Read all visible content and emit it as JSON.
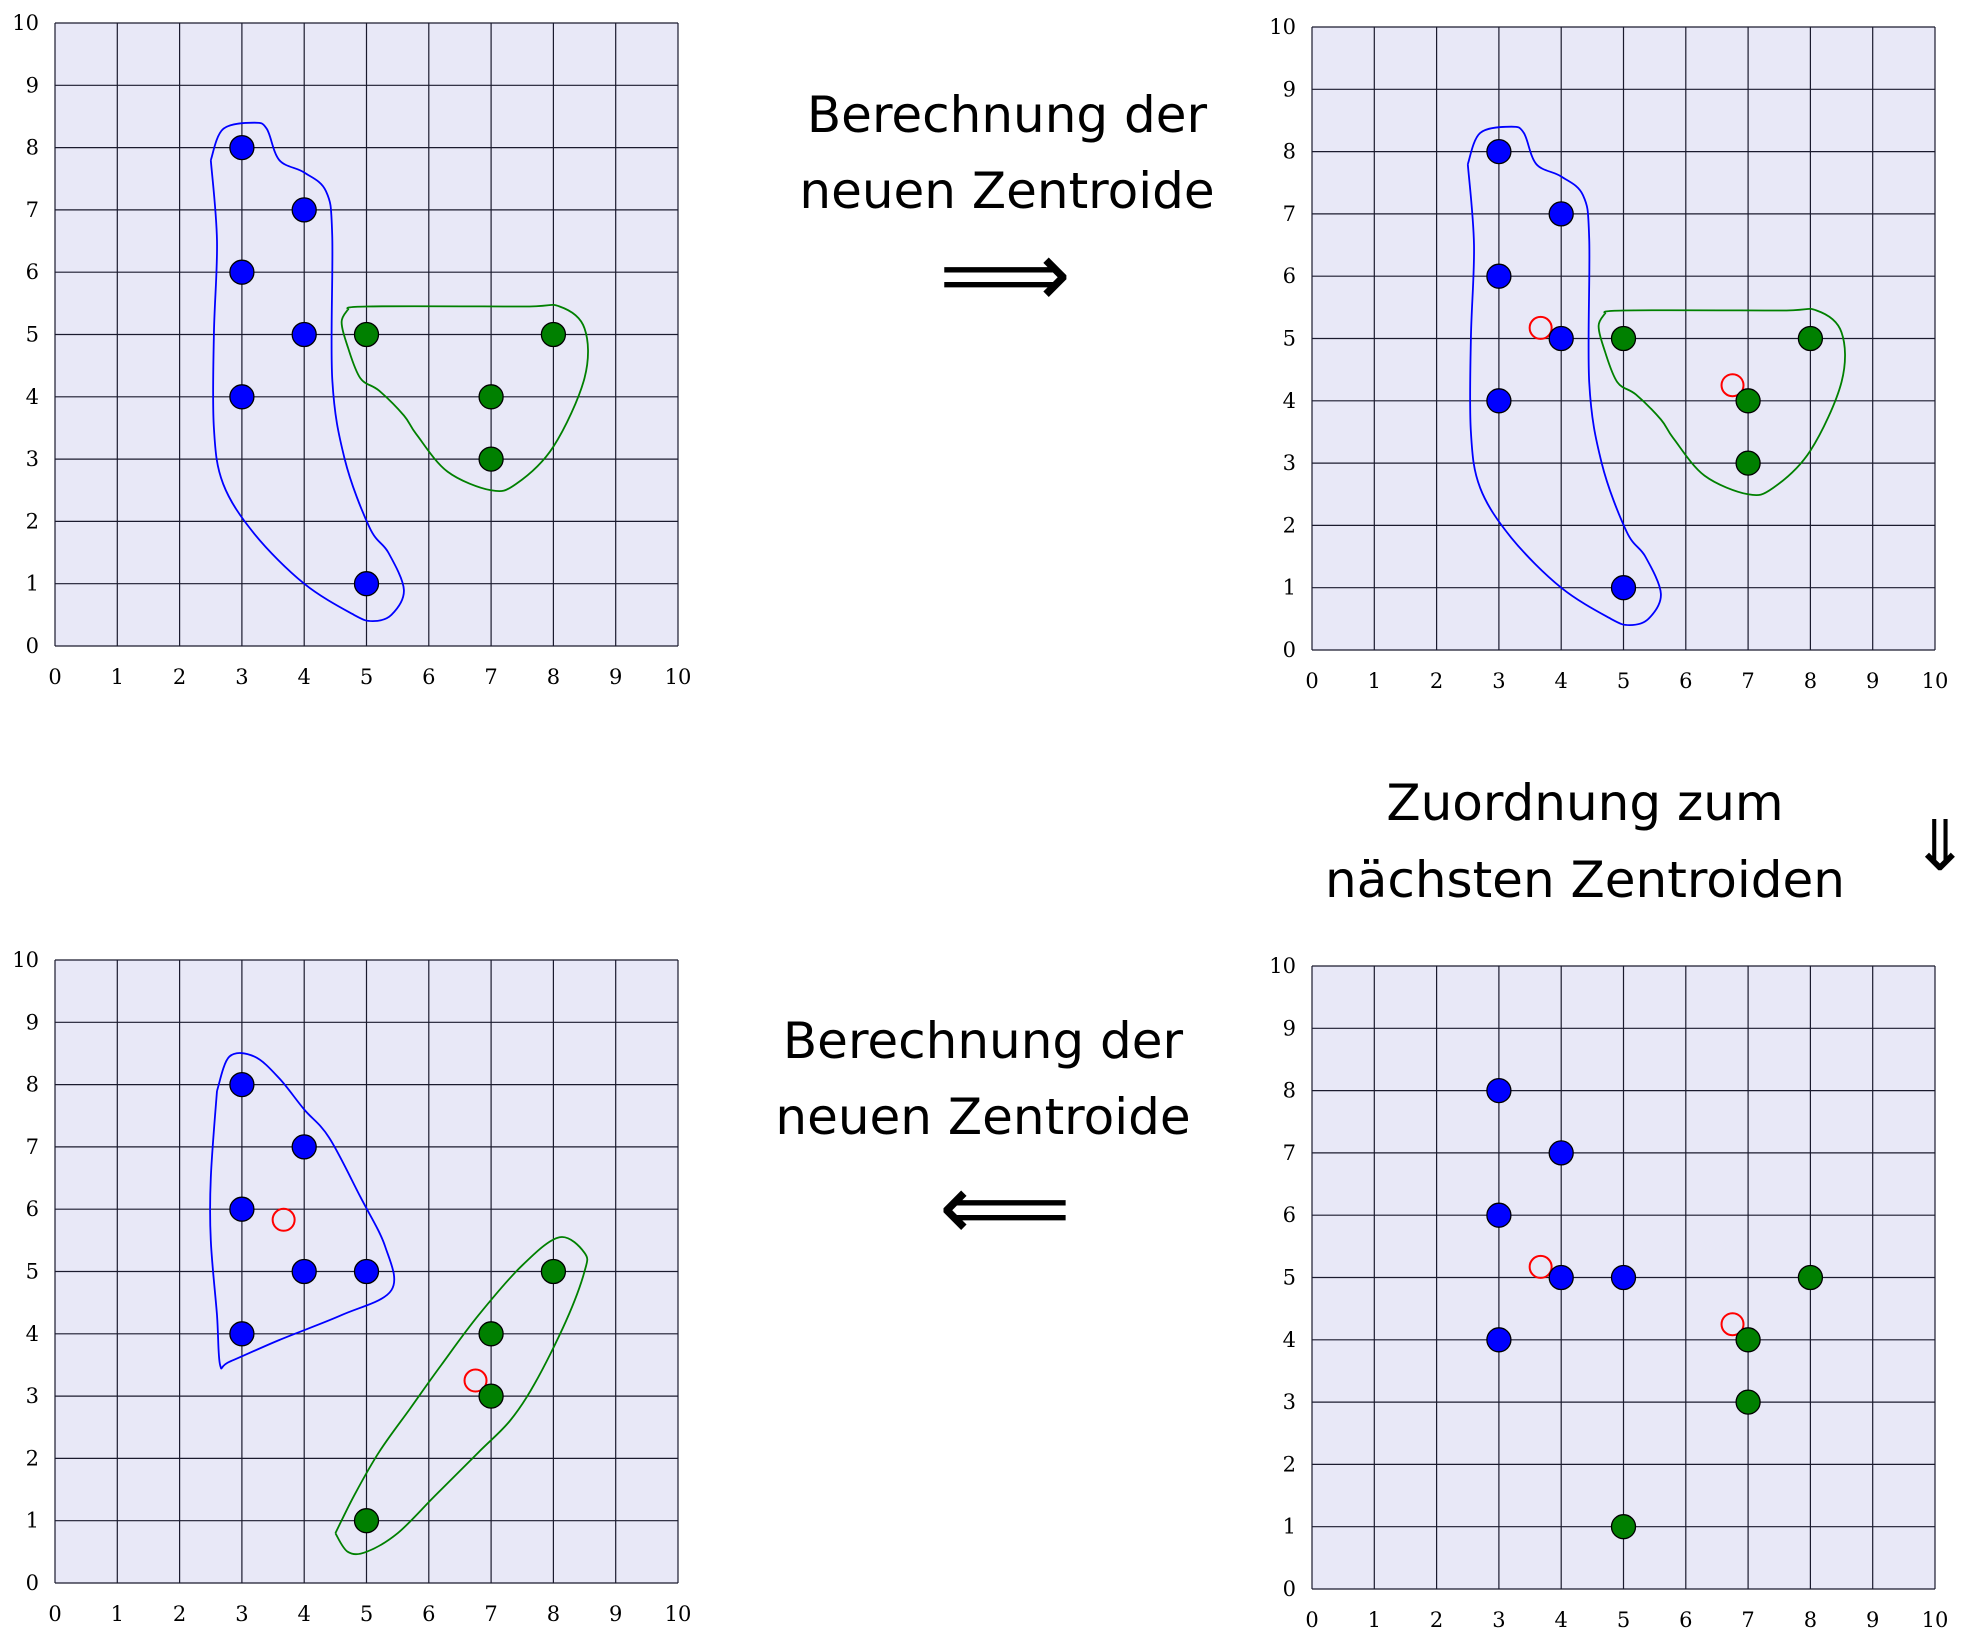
{
  "axis_ticks": [
    "0",
    "1",
    "2",
    "3",
    "4",
    "5",
    "6",
    "7",
    "8",
    "9",
    "10"
  ],
  "colors": {
    "background": "#e8e8f7",
    "grid": "#1a1a2e",
    "cluster_a": "#0000ff",
    "cluster_b": "#008000",
    "centroid": "#ff0000"
  },
  "captions": {
    "top_line1": "Berechnung der",
    "top_line2": "neuen Zentroide",
    "right_line1": "Zuordnung zum",
    "right_line2": "nächsten Zentroiden",
    "bottom_line1": "Berechnung der",
    "bottom_line2": "neuen Zentroide"
  },
  "arrows": {
    "right": "⟹",
    "down": "⇓",
    "left": "⟸"
  },
  "chart_data": [
    {
      "type": "scatter",
      "panel": "top-left",
      "xlim": [
        0,
        10
      ],
      "ylim": [
        0,
        10
      ],
      "grid": true,
      "series": [
        {
          "color": "#0000ff",
          "points": [
            [
              3,
              8
            ],
            [
              4,
              7
            ],
            [
              3,
              6
            ],
            [
              4,
              5
            ],
            [
              3,
              4
            ],
            [
              5,
              1
            ]
          ]
        },
        {
          "color": "#008000",
          "points": [
            [
              5,
              5
            ],
            [
              8,
              5
            ],
            [
              7,
              4
            ],
            [
              7,
              3
            ]
          ]
        }
      ],
      "centroids": [],
      "hulls": [
        {
          "color": "#0000ff",
          "points": [
            [
              2.5,
              7.8
            ],
            [
              2.7,
              8.3
            ],
            [
              3.2,
              8.4
            ],
            [
              3.4,
              8.3
            ],
            [
              3.6,
              7.8
            ],
            [
              4.0,
              7.6
            ],
            [
              4.35,
              7.3
            ],
            [
              4.45,
              6.6
            ],
            [
              4.45,
              4.3
            ],
            [
              4.65,
              3.0
            ],
            [
              5.05,
              1.9
            ],
            [
              5.35,
              1.5
            ],
            [
              5.6,
              0.9
            ],
            [
              5.4,
              0.5
            ],
            [
              5.1,
              0.4
            ],
            [
              4.8,
              0.5
            ],
            [
              4.0,
              1.0
            ],
            [
              3.2,
              1.8
            ],
            [
              2.7,
              2.6
            ],
            [
              2.55,
              3.5
            ],
            [
              2.55,
              5.0
            ],
            [
              2.6,
              6.5
            ],
            [
              2.5,
              7.8
            ]
          ]
        },
        {
          "color": "#008000",
          "points": [
            [
              4.7,
              5.4
            ],
            [
              5.0,
              5.45
            ],
            [
              7.5,
              5.45
            ],
            [
              8.1,
              5.45
            ],
            [
              8.5,
              5.1
            ],
            [
              8.5,
              4.3
            ],
            [
              8.0,
              3.2
            ],
            [
              7.4,
              2.6
            ],
            [
              7.0,
              2.5
            ],
            [
              6.3,
              2.8
            ],
            [
              5.8,
              3.4
            ],
            [
              5.6,
              3.7
            ],
            [
              5.2,
              4.1
            ],
            [
              4.9,
              4.3
            ],
            [
              4.7,
              4.8
            ],
            [
              4.6,
              5.2
            ],
            [
              4.7,
              5.4
            ]
          ]
        }
      ]
    },
    {
      "type": "scatter",
      "panel": "top-right",
      "xlim": [
        0,
        10
      ],
      "ylim": [
        0,
        10
      ],
      "grid": true,
      "series": [
        {
          "color": "#0000ff",
          "points": [
            [
              3,
              8
            ],
            [
              4,
              7
            ],
            [
              3,
              6
            ],
            [
              4,
              5
            ],
            [
              3,
              4
            ],
            [
              5,
              1
            ]
          ]
        },
        {
          "color": "#008000",
          "points": [
            [
              5,
              5
            ],
            [
              8,
              5
            ],
            [
              7,
              4
            ],
            [
              7,
              3
            ]
          ]
        }
      ],
      "centroids": [
        [
          3.67,
          5.17
        ],
        [
          6.75,
          4.25
        ]
      ],
      "hulls": [
        {
          "color": "#0000ff",
          "points": [
            [
              2.5,
              7.8
            ],
            [
              2.7,
              8.3
            ],
            [
              3.2,
              8.4
            ],
            [
              3.4,
              8.3
            ],
            [
              3.6,
              7.8
            ],
            [
              4.0,
              7.6
            ],
            [
              4.35,
              7.3
            ],
            [
              4.45,
              6.6
            ],
            [
              4.45,
              4.3
            ],
            [
              4.65,
              3.0
            ],
            [
              5.05,
              1.9
            ],
            [
              5.35,
              1.5
            ],
            [
              5.6,
              0.9
            ],
            [
              5.4,
              0.5
            ],
            [
              5.1,
              0.4
            ],
            [
              4.8,
              0.5
            ],
            [
              4.0,
              1.0
            ],
            [
              3.2,
              1.8
            ],
            [
              2.7,
              2.6
            ],
            [
              2.55,
              3.5
            ],
            [
              2.55,
              5.0
            ],
            [
              2.6,
              6.5
            ],
            [
              2.5,
              7.8
            ]
          ]
        },
        {
          "color": "#008000",
          "points": [
            [
              4.7,
              5.4
            ],
            [
              5.0,
              5.45
            ],
            [
              7.5,
              5.45
            ],
            [
              8.1,
              5.45
            ],
            [
              8.5,
              5.1
            ],
            [
              8.5,
              4.3
            ],
            [
              8.0,
              3.2
            ],
            [
              7.4,
              2.6
            ],
            [
              7.0,
              2.5
            ],
            [
              6.3,
              2.8
            ],
            [
              5.8,
              3.4
            ],
            [
              5.6,
              3.7
            ],
            [
              5.2,
              4.1
            ],
            [
              4.9,
              4.3
            ],
            [
              4.7,
              4.8
            ],
            [
              4.6,
              5.2
            ],
            [
              4.7,
              5.4
            ]
          ]
        }
      ]
    },
    {
      "type": "scatter",
      "panel": "bottom-right",
      "xlim": [
        0,
        10
      ],
      "ylim": [
        0,
        10
      ],
      "grid": true,
      "series": [
        {
          "color": "#0000ff",
          "points": [
            [
              3,
              8
            ],
            [
              4,
              7
            ],
            [
              3,
              6
            ],
            [
              4,
              5
            ],
            [
              5,
              5
            ],
            [
              3,
              4
            ]
          ]
        },
        {
          "color": "#008000",
          "points": [
            [
              8,
              5
            ],
            [
              7,
              4
            ],
            [
              7,
              3
            ],
            [
              5,
              1
            ]
          ]
        }
      ],
      "centroids": [
        [
          3.67,
          5.17
        ],
        [
          6.75,
          4.25
        ]
      ],
      "hulls": []
    },
    {
      "type": "scatter",
      "panel": "bottom-left",
      "xlim": [
        0,
        10
      ],
      "ylim": [
        0,
        10
      ],
      "grid": true,
      "series": [
        {
          "color": "#0000ff",
          "points": [
            [
              3,
              8
            ],
            [
              4,
              7
            ],
            [
              3,
              6
            ],
            [
              4,
              5
            ],
            [
              5,
              5
            ],
            [
              3,
              4
            ]
          ]
        },
        {
          "color": "#008000",
          "points": [
            [
              8,
              5
            ],
            [
              7,
              4
            ],
            [
              7,
              3
            ],
            [
              5,
              1
            ]
          ]
        }
      ],
      "centroids": [
        [
          3.67,
          5.83
        ],
        [
          6.75,
          3.25
        ]
      ],
      "hulls": [
        {
          "color": "#0000ff",
          "points": [
            [
              2.6,
              7.9
            ],
            [
              2.8,
              8.45
            ],
            [
              3.2,
              8.45
            ],
            [
              3.6,
              8.1
            ],
            [
              4.0,
              7.6
            ],
            [
              4.4,
              7.15
            ],
            [
              4.9,
              6.2
            ],
            [
              5.3,
              5.4
            ],
            [
              5.4,
              4.7
            ],
            [
              4.6,
              4.3
            ],
            [
              3.6,
              3.9
            ],
            [
              2.8,
              3.55
            ],
            [
              2.65,
              3.5
            ],
            [
              2.6,
              4.3
            ],
            [
              2.5,
              5.5
            ],
            [
              2.5,
              6.5
            ],
            [
              2.6,
              7.9
            ]
          ]
        },
        {
          "color": "#008000",
          "points": [
            [
              4.5,
              0.8
            ],
            [
              4.7,
              0.5
            ],
            [
              5.0,
              0.5
            ],
            [
              5.5,
              0.8
            ],
            [
              6.1,
              1.4
            ],
            [
              6.8,
              2.1
            ],
            [
              7.3,
              2.6
            ],
            [
              7.7,
              3.2
            ],
            [
              8.2,
              4.2
            ],
            [
              8.5,
              5.0
            ],
            [
              8.5,
              5.3
            ],
            [
              8.1,
              5.55
            ],
            [
              7.5,
              5.1
            ],
            [
              6.8,
              4.3
            ],
            [
              6.2,
              3.5
            ],
            [
              5.7,
              2.8
            ],
            [
              5.2,
              2.1
            ],
            [
              4.8,
              1.4
            ],
            [
              4.5,
              0.8
            ]
          ]
        }
      ]
    }
  ]
}
